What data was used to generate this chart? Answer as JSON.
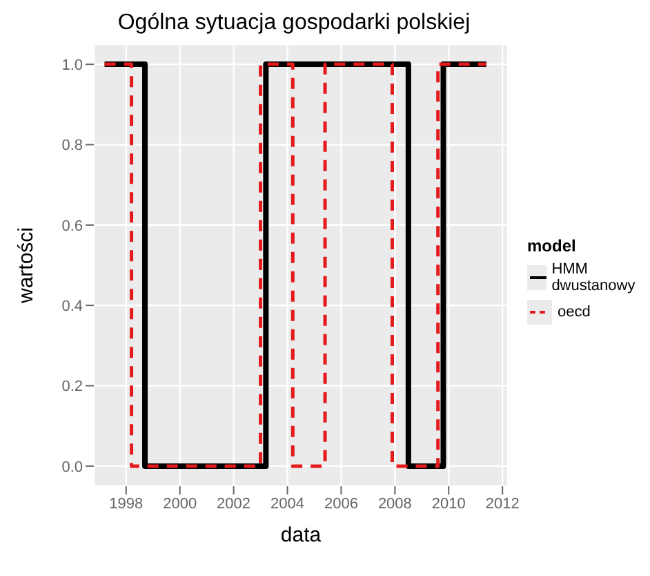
{
  "chart_data": {
    "type": "step",
    "title": "Ogólna sytuacja gospodarki polskiej",
    "xlabel": "data",
    "ylabel": "wartości",
    "legend_title": "model",
    "series": [
      {
        "name": "HMM dwustanowy",
        "color": "#000000",
        "line_style": "solid",
        "x": [
          1997.2,
          1998.7,
          2003.2,
          2008.5,
          2009.8,
          2011.4
        ],
        "values": [
          1,
          0,
          1,
          0,
          1,
          1
        ]
      },
      {
        "name": "oecd",
        "color": "#e41a1c",
        "line_style": "dashed",
        "x": [
          1997.2,
          1998.2,
          2003.0,
          2004.2,
          2005.4,
          2007.9,
          2009.6,
          2011.4
        ],
        "values": [
          1,
          0,
          1,
          0,
          1,
          0,
          1,
          1
        ]
      }
    ],
    "xlim": [
      1996.8,
      2012.2
    ],
    "xticks": [
      1998,
      2000,
      2002,
      2004,
      2006,
      2008,
      2010,
      2012
    ],
    "ylim": [
      -0.05,
      1.05
    ],
    "yticks": [
      {
        "value": 0,
        "label": "0.0"
      },
      {
        "value": 0.2,
        "label": "0.2"
      },
      {
        "value": 0.4,
        "label": "0.4"
      },
      {
        "value": 0.6,
        "label": "0.6"
      },
      {
        "value": 0.8,
        "label": "0.8"
      },
      {
        "value": 1,
        "label": "1.0"
      }
    ],
    "grid": true,
    "legend": "right",
    "marker": "none"
  }
}
